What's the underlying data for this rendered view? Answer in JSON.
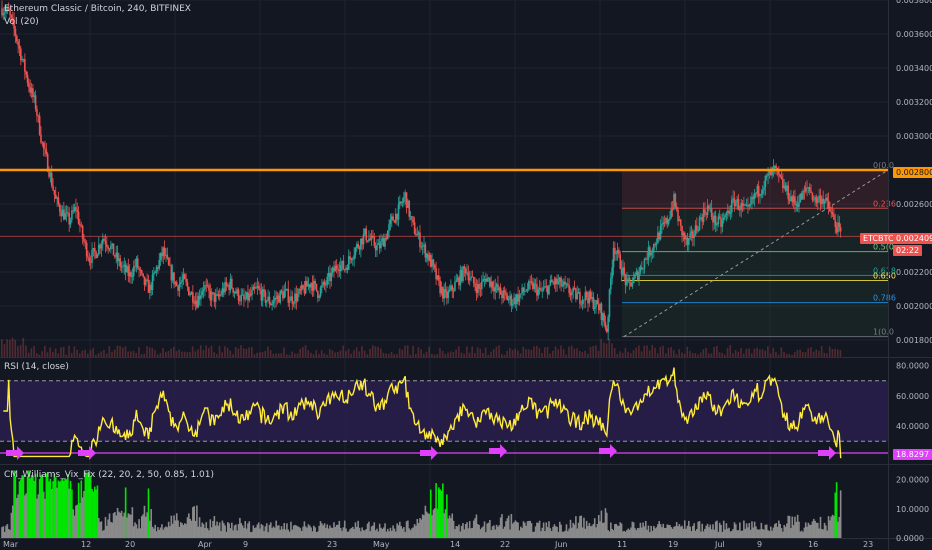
{
  "header": {
    "title": "Ethereum Classic / Bitcoin, 240, BITFINEX",
    "volume": "Vol (20)"
  },
  "rsi_legend": "RSI (14, close)",
  "vix_legend": "CM_Williams_Vix_Fix (22, 20, 2, 50, 0.85, 1.01)",
  "price_tags": {
    "resistance": "0.0028000",
    "etcbtc_label": "ETCBTC",
    "etcbtc_value": "0.0024096",
    "countdown": "02:22",
    "rsi_value": "18.8297"
  },
  "fib_labels": [
    "0(0.0",
    "0.236",
    "0.5(0",
    "0.618",
    "0.650",
    "0.786",
    "1(0.0"
  ],
  "colors": {
    "background": "#131722",
    "grid": "#1f2330",
    "candle_up": "#26a69a",
    "candle_down": "#ef5350",
    "resistance": "#ff9800",
    "rsi_line": "#ffeb3b",
    "rsi_band": "#2a1f4d",
    "arrow": "#e040fb",
    "vix_green": "#00e600",
    "vix_gray": "#8a8a8a"
  },
  "chart_data": [
    {
      "type": "candlestick",
      "title": "Ethereum Classic / Bitcoin, 240, BITFINEX",
      "y_ticks": [
        "0.0038000",
        "0.0036000",
        "0.0034000",
        "0.0032000",
        "0.0030000",
        "0.0026000",
        "0.0022000",
        "0.0020000",
        "0.0018000"
      ],
      "ylim": [
        0.0017,
        0.0038
      ],
      "x_ticks": [
        "Mar",
        "12",
        "20",
        "Apr",
        "9",
        "23",
        "May",
        "14",
        "22",
        "Jun",
        "11",
        "19",
        "Jul",
        "9",
        "16",
        "23"
      ],
      "close_path": [
        0.00375,
        0.00372,
        0.0036,
        0.00345,
        0.0033,
        0.00318,
        0.00295,
        0.0028,
        0.00262,
        0.00255,
        0.0025,
        0.00258,
        0.0024,
        0.00228,
        0.00232,
        0.0024,
        0.00236,
        0.00228,
        0.00222,
        0.00218,
        0.00225,
        0.00214,
        0.0021,
        0.00222,
        0.00232,
        0.0022,
        0.00212,
        0.00215,
        0.00208,
        0.00203,
        0.00212,
        0.00206,
        0.00204,
        0.0021,
        0.00213,
        0.00207,
        0.00203,
        0.00206,
        0.0021,
        0.00205,
        0.00202,
        0.00205,
        0.00208,
        0.00204,
        0.00206,
        0.0021,
        0.00214,
        0.00208,
        0.00212,
        0.00218,
        0.00225,
        0.00222,
        0.0023,
        0.00236,
        0.00242,
        0.00238,
        0.00234,
        0.0024,
        0.0025,
        0.00256,
        0.00265,
        0.00248,
        0.0024,
        0.00232,
        0.00224,
        0.00212,
        0.00205,
        0.0021,
        0.00216,
        0.00222,
        0.00214,
        0.0021,
        0.00217,
        0.00213,
        0.00208,
        0.00205,
        0.00203,
        0.00206,
        0.0021,
        0.00212,
        0.00208,
        0.0021,
        0.00214,
        0.00213,
        0.0021,
        0.00207,
        0.00205,
        0.00206,
        0.00202,
        0.00198,
        0.00186,
        0.00236,
        0.00225,
        0.00212,
        0.00215,
        0.00222,
        0.0023,
        0.00236,
        0.00244,
        0.0025,
        0.00262,
        0.00245,
        0.00236,
        0.00243,
        0.00252,
        0.00258,
        0.0025,
        0.00248,
        0.00255,
        0.00262,
        0.00258,
        0.00255,
        0.00265,
        0.0027,
        0.00276,
        0.0028,
        0.00272,
        0.00266,
        0.0026,
        0.00264,
        0.0027,
        0.00262,
        0.00264,
        0.00258,
        0.00248,
        0.00241
      ],
      "resistance": 0.0028,
      "last": 0.0024096,
      "fib_levels": [
        0.0028,
        0.002575,
        0.00232,
        0.00218,
        0.00215,
        0.00202,
        0.00182
      ]
    },
    {
      "type": "line",
      "title": "RSI (14, close)",
      "y_ticks": [
        "80.0000",
        "60.0000",
        "40.0000"
      ],
      "ylim": [
        15,
        85
      ],
      "bands": [
        30,
        70
      ],
      "last": 18.8297
    },
    {
      "type": "bar",
      "title": "CM_Williams_Vix_Fix (22, 20, 2, 50, 0.85, 1.01)",
      "y_ticks": [
        "20.0000",
        "10.0000",
        "0.0000"
      ],
      "ylim": [
        0,
        25
      ]
    }
  ]
}
